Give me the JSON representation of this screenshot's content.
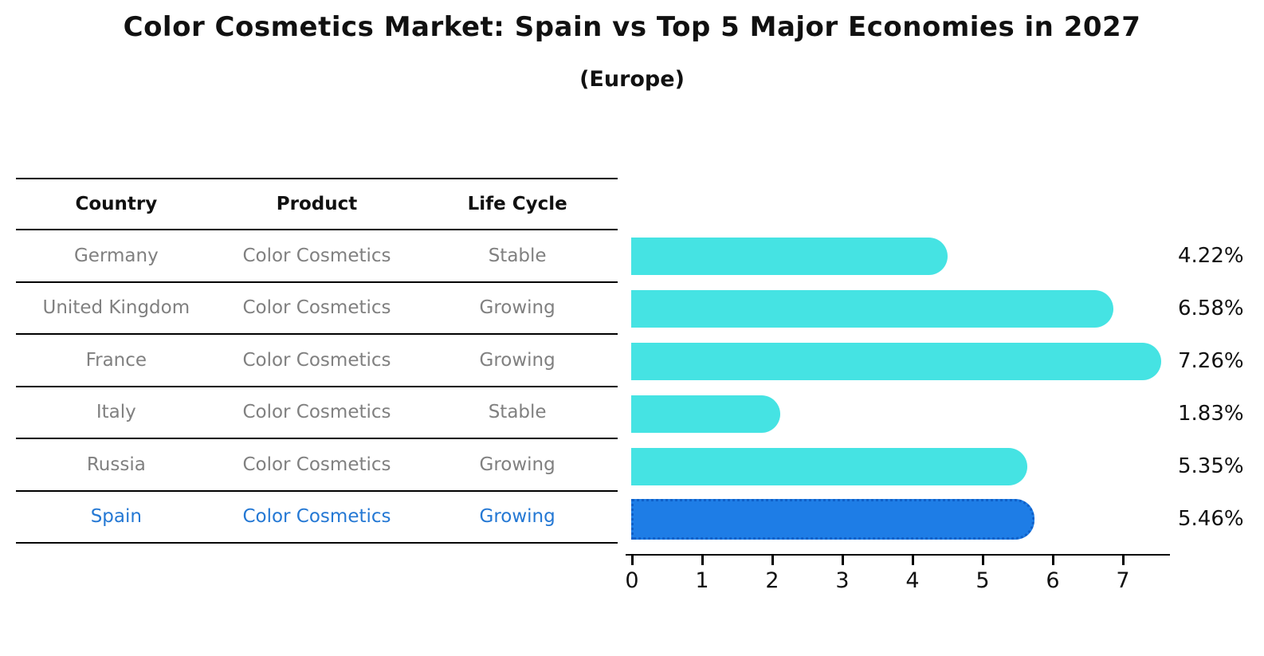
{
  "title": "Color Cosmetics Market: Spain vs Top 5 Major Economies in 2027",
  "subtitle": "(Europe)",
  "table": {
    "headers": [
      "Country",
      "Product",
      "Life Cycle"
    ],
    "rows": [
      {
        "country": "Germany",
        "product": "Color Cosmetics",
        "life_cycle": "Stable",
        "highlight": false
      },
      {
        "country": "United Kingdom",
        "product": "Color Cosmetics",
        "life_cycle": "Growing",
        "highlight": false
      },
      {
        "country": "France",
        "product": "Color Cosmetics",
        "life_cycle": "Growing",
        "highlight": false
      },
      {
        "country": "Italy",
        "product": "Color Cosmetics",
        "life_cycle": "Stable",
        "highlight": false
      },
      {
        "country": "Russia",
        "product": "Color Cosmetics",
        "life_cycle": "Growing",
        "highlight": true
      }
    ],
    "highlight_row": {
      "country": "Spain",
      "product": "Color Cosmetics",
      "life_cycle": "Growing"
    }
  },
  "chart_data": {
    "type": "bar",
    "orientation": "horizontal",
    "title": "Color Cosmetics Market: Spain vs Top 5 Major Economies in 2027",
    "subtitle": "(Europe)",
    "categories": [
      "Germany",
      "United Kingdom",
      "France",
      "Italy",
      "Russia",
      "Spain"
    ],
    "values": [
      4.22,
      6.58,
      7.26,
      1.83,
      5.35,
      5.46
    ],
    "value_labels": [
      "4.22%",
      "6.58%",
      "7.26%",
      "1.83%",
      "5.35%",
      "5.46%"
    ],
    "xlabel": "",
    "ylabel": "",
    "xlim": [
      0,
      7.7
    ],
    "x_ticks": [
      0,
      1,
      2,
      3,
      4,
      5,
      6,
      7
    ],
    "grid": false,
    "legend": "none",
    "highlight_index": 5,
    "colors": {
      "bar": "#45e3e3",
      "highlight_bar": "#1e7de6",
      "highlight_bar_border": "#1060c8",
      "highlight_text": "#2478d4",
      "row_text": "#808080",
      "axis_text": "#111111"
    }
  }
}
